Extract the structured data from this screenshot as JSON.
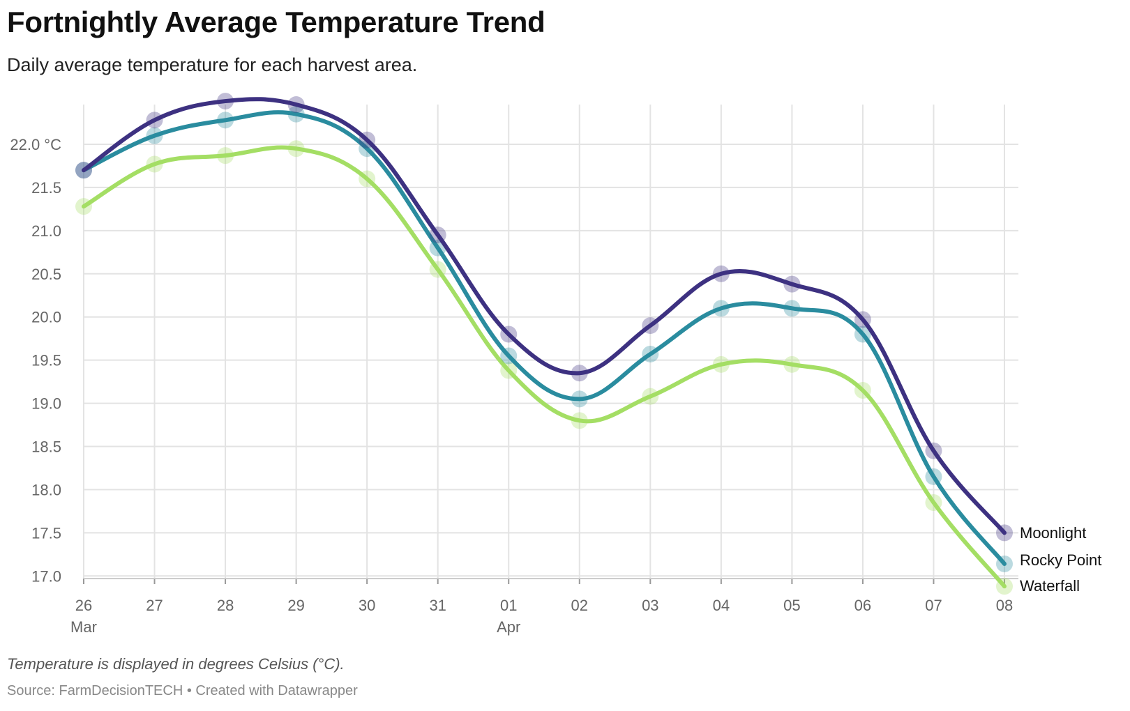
{
  "title": "Fortnightly Average Temperature Trend",
  "subtitle": "Daily average temperature for each harvest area.",
  "notes": "Temperature is displayed in degrees Celsius (°C).",
  "source": {
    "prefix": "Source: ",
    "name": "FarmDecisionTECH",
    "separator": " • ",
    "credit": "Created with Datawrapper"
  },
  "chart_data": {
    "type": "line",
    "x": [
      "26",
      "27",
      "28",
      "29",
      "30",
      "31",
      "01",
      "02",
      "03",
      "04",
      "05",
      "06",
      "07",
      "08"
    ],
    "x_month_labels": {
      "0": "Mar",
      "6": "Apr"
    },
    "y_ticks": [
      "22.0 °C",
      "21.5",
      "21.0",
      "20.5",
      "20.0",
      "19.5",
      "19.0",
      "18.5",
      "18.0",
      "17.5",
      "17.0"
    ],
    "y_tick_values": [
      22.0,
      21.5,
      21.0,
      20.5,
      20.0,
      19.5,
      19.0,
      18.5,
      18.0,
      17.5,
      17.0
    ],
    "ylim": [
      16.95,
      22.55
    ],
    "grid": "both",
    "legend_position": "right, at line ends",
    "series": [
      {
        "name": "Moonlight",
        "color": "#3d3181",
        "values": [
          21.7,
          22.28,
          22.5,
          22.46,
          22.05,
          20.95,
          19.8,
          19.35,
          19.9,
          20.5,
          20.38,
          19.97,
          18.45,
          17.5
        ]
      },
      {
        "name": "Rocky Point",
        "color": "#2a8c9f",
        "values": [
          21.7,
          22.1,
          22.28,
          22.35,
          21.95,
          20.8,
          19.55,
          19.05,
          19.57,
          20.1,
          20.1,
          19.8,
          18.15,
          17.14
        ]
      },
      {
        "name": "Waterfall",
        "color": "#a4de64",
        "values": [
          21.28,
          21.77,
          21.87,
          21.95,
          21.6,
          20.55,
          19.38,
          18.8,
          19.08,
          19.45,
          19.45,
          19.15,
          17.85,
          16.88
        ]
      }
    ]
  }
}
